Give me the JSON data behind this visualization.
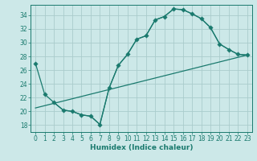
{
  "xlabel": "Humidex (Indice chaleur)",
  "bg_color": "#cce8e8",
  "grid_color": "#aacccc",
  "line_color": "#1a7a6e",
  "xlim": [
    -0.5,
    23.5
  ],
  "ylim": [
    17.0,
    35.5
  ],
  "xticks": [
    0,
    1,
    2,
    3,
    4,
    5,
    6,
    7,
    8,
    9,
    10,
    11,
    12,
    13,
    14,
    15,
    16,
    17,
    18,
    19,
    20,
    21,
    22,
    23
  ],
  "yticks": [
    18,
    20,
    22,
    24,
    26,
    28,
    30,
    32,
    34
  ],
  "line1_x": [
    0,
    1,
    2,
    3,
    4,
    5,
    6,
    7,
    8,
    9,
    10,
    11,
    12,
    13,
    14,
    15,
    16,
    17,
    18,
    19,
    20,
    21,
    22,
    23
  ],
  "line1_y": [
    27.0,
    22.5,
    21.3,
    20.2,
    20.0,
    19.5,
    19.3,
    18.1,
    23.4,
    26.7,
    28.3,
    30.5,
    31.0,
    33.3,
    33.8,
    34.9,
    34.8,
    34.2,
    33.5,
    32.2,
    29.8,
    29.0,
    28.3,
    28.2
  ],
  "line2_x": [
    2,
    3,
    4,
    5,
    6,
    7,
    8,
    9,
    10,
    11,
    12,
    13,
    14,
    15,
    16,
    17,
    18,
    19,
    20,
    21,
    22,
    23
  ],
  "line2_y": [
    21.3,
    20.2,
    20.0,
    19.5,
    19.3,
    18.1,
    23.4,
    26.7,
    28.3,
    30.5,
    31.0,
    33.3,
    33.8,
    34.9,
    34.8,
    34.2,
    33.5,
    32.2,
    29.8,
    29.0,
    28.3,
    28.2
  ],
  "line3_x": [
    0,
    23
  ],
  "line3_y": [
    20.5,
    28.2
  ],
  "marker_size": 2.8,
  "font_size_axis": 6.5,
  "font_size_tick": 5.5
}
